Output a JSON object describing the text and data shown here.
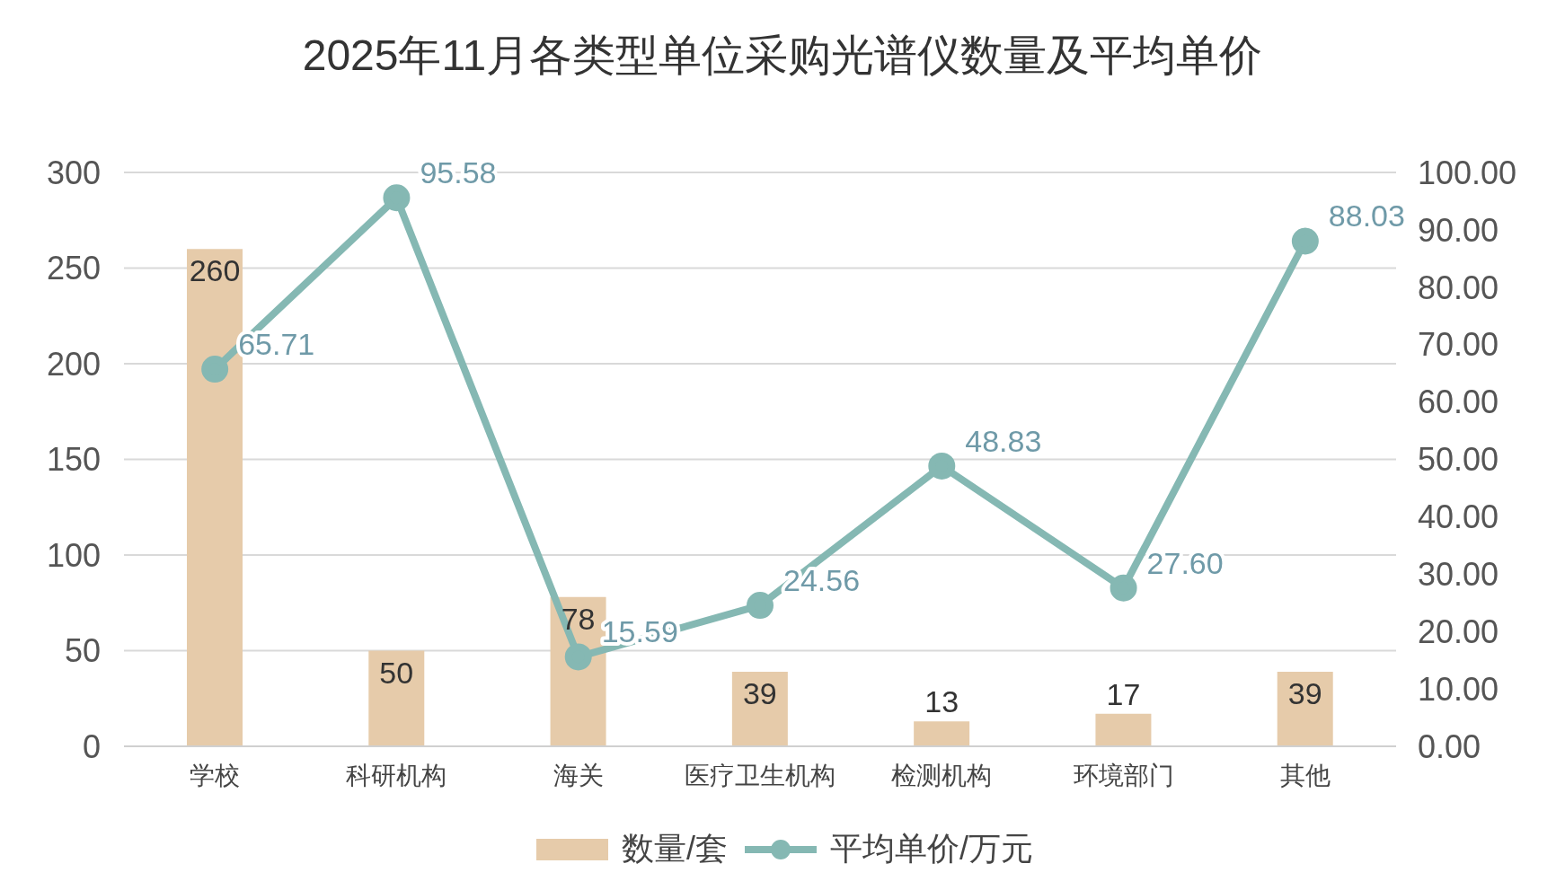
{
  "chart_data": {
    "type": "bar",
    "title": "2025年11月各类型单位采购光谱仪数量及平均单价",
    "categories": [
      "学校",
      "科研机构",
      "海关",
      "医疗卫生机构",
      "检测机构",
      "环境部门",
      "其他"
    ],
    "series": [
      {
        "name": "数量/套",
        "color": "#e6cbaa",
        "values": [
          260,
          50,
          78,
          39,
          13,
          17,
          39
        ],
        "value_labels": [
          "260",
          "50",
          "78",
          "39",
          "13",
          "17",
          "39"
        ]
      },
      {
        "name": "平均单价/万元",
        "type": "line",
        "axis": "y2",
        "color": "#85b8b3",
        "values": [
          65.71,
          95.58,
          15.59,
          24.56,
          48.83,
          27.6,
          88.03
        ],
        "value_labels": [
          "65.71",
          "95.58",
          "15.59",
          "24.56",
          "48.83",
          "27.60",
          "88.03"
        ]
      }
    ],
    "ylim": [
      0,
      300
    ],
    "yticks": [
      0,
      50,
      100,
      150,
      200,
      250,
      300
    ],
    "y2lim": [
      0,
      100
    ],
    "y2ticks": [
      {
        "value": 0,
        "label": "0.00"
      },
      {
        "value": 10,
        "label": "10.00"
      },
      {
        "value": 20,
        "label": "20.00"
      },
      {
        "value": 30,
        "label": "30.00"
      },
      {
        "value": 40,
        "label": "40.00"
      },
      {
        "value": 50,
        "label": "50.00"
      },
      {
        "value": 60,
        "label": "60.00"
      },
      {
        "value": 70,
        "label": "70.00"
      },
      {
        "value": 80,
        "label": "80.00"
      },
      {
        "value": 90,
        "label": "90.00"
      },
      {
        "value": 100,
        "label": "100.00"
      }
    ],
    "grid": "y",
    "legend": "bottom",
    "marker": "circle",
    "line_style": "solid"
  }
}
